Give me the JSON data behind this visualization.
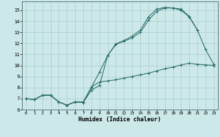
{
  "xlabel": "Humidex (Indice chaleur)",
  "xlim": [
    -0.5,
    23.5
  ],
  "ylim": [
    6,
    15.8
  ],
  "yticks": [
    6,
    7,
    8,
    9,
    10,
    11,
    12,
    13,
    14,
    15
  ],
  "xticks": [
    0,
    1,
    2,
    3,
    4,
    5,
    6,
    7,
    8,
    9,
    10,
    11,
    12,
    13,
    14,
    15,
    16,
    17,
    18,
    19,
    20,
    21,
    22,
    23
  ],
  "bg_color": "#cce8e8",
  "grid_color": "#aacccc",
  "line_color": "#2e6e6e",
  "line1_x": [
    0,
    1,
    2,
    3,
    4,
    5,
    6,
    7,
    8,
    9,
    10,
    11,
    12,
    13,
    14,
    15,
    16,
    17,
    18,
    19,
    20,
    21
  ],
  "line1_y": [
    7.0,
    6.9,
    7.3,
    7.3,
    6.7,
    6.4,
    6.7,
    6.7,
    8.0,
    9.4,
    10.9,
    11.9,
    12.2,
    12.5,
    13.0,
    14.1,
    14.9,
    15.2,
    15.2,
    15.0,
    14.4,
    13.2
  ],
  "line2_x": [
    0,
    1,
    2,
    3,
    4,
    5,
    6,
    7,
    8,
    9,
    10,
    11,
    12,
    13,
    14,
    15,
    16,
    17,
    18,
    19,
    20,
    21,
    22,
    23
  ],
  "line2_y": [
    7.0,
    6.9,
    7.3,
    7.3,
    6.7,
    6.4,
    6.7,
    6.65,
    7.75,
    8.2,
    10.9,
    11.95,
    12.25,
    12.65,
    13.2,
    14.4,
    15.1,
    15.25,
    15.2,
    15.1,
    14.45,
    13.2,
    11.45,
    10.1
  ],
  "line3_x": [
    0,
    1,
    2,
    3,
    4,
    5,
    6,
    7,
    8,
    9,
    10,
    11,
    12,
    13,
    14,
    15,
    16,
    17,
    18,
    19,
    20,
    21,
    22,
    23
  ],
  "line3_y": [
    7.0,
    6.9,
    7.3,
    7.3,
    6.7,
    6.4,
    6.7,
    6.65,
    8.05,
    8.5,
    8.6,
    8.7,
    8.85,
    9.0,
    9.15,
    9.3,
    9.5,
    9.7,
    9.85,
    10.05,
    10.2,
    10.1,
    10.05,
    10.0
  ],
  "figsize": [
    3.2,
    2.0
  ],
  "dpi": 100
}
